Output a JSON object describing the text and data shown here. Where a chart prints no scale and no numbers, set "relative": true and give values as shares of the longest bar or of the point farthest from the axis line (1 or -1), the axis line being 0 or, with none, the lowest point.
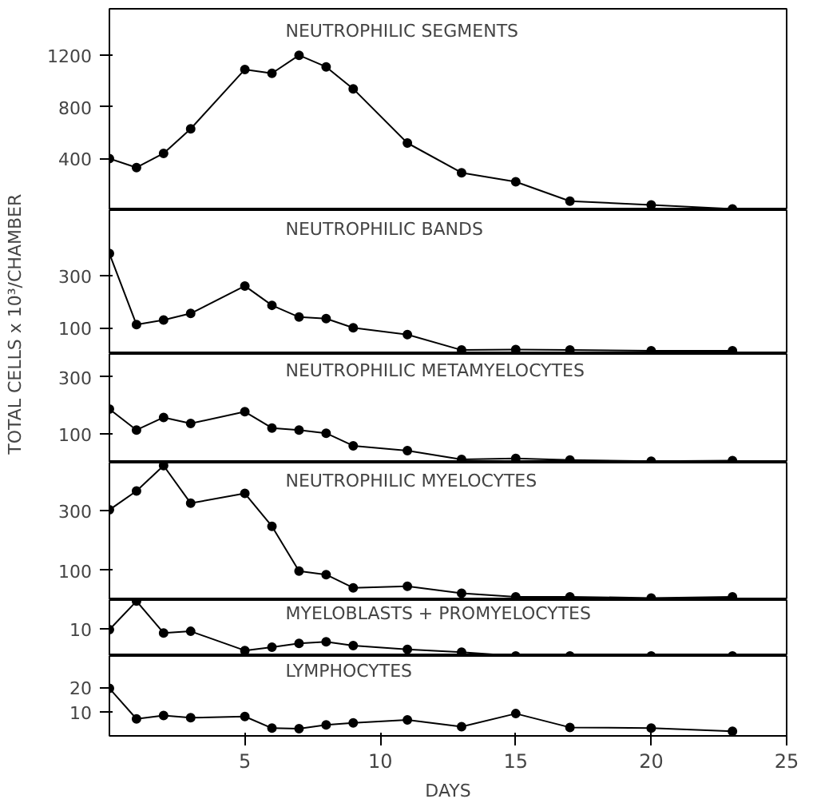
{
  "chart_data": [
    {
      "type": "line",
      "title": "NEUTROPHILIC SEGMENTS",
      "x": [
        0,
        1,
        2,
        3,
        5,
        6,
        7,
        8,
        9,
        11,
        13,
        15,
        17,
        20,
        23
      ],
      "xlim": [
        0,
        25
      ],
      "ylim": [
        0,
        1560
      ],
      "yticks": [
        400,
        800,
        1200
      ],
      "tick_labels": "y",
      "marker": "circle",
      "line_style": "solid",
      "series": [
        {
          "color": "#000000",
          "values": [
            400,
            330,
            440,
            630,
            1090,
            1060,
            1200,
            1110,
            940,
            520,
            290,
            220,
            70,
            40,
            10
          ]
        }
      ]
    },
    {
      "type": "line",
      "title": "NEUTROPHILIC BANDS",
      "x": [
        0,
        1,
        2,
        3,
        5,
        6,
        7,
        8,
        9,
        11,
        13,
        15,
        17,
        20,
        23
      ],
      "xlim": [
        0,
        25
      ],
      "ylim": [
        0,
        550
      ],
      "yticks": [
        100,
        300
      ],
      "tick_labels": "y",
      "marker": "circle",
      "line_style": "solid",
      "series": [
        {
          "color": "#000000",
          "values": [
            384,
            112,
            130,
            155,
            260,
            186,
            141,
            135,
            100,
            74,
            15,
            17,
            15,
            12,
            12
          ]
        }
      ]
    },
    {
      "type": "line",
      "title": "NEUTROPHILIC METAMYELOCYTES",
      "ylabel": "TOTAL CELLS x 10³/CHAMBER",
      "x": [
        0,
        1,
        2,
        3,
        5,
        6,
        7,
        8,
        9,
        11,
        13,
        15,
        17,
        20,
        23
      ],
      "xlim": [
        0,
        25
      ],
      "ylim": [
        0,
        380
      ],
      "yticks": [
        100,
        300
      ],
      "tick_labels": "y",
      "marker": "circle",
      "line_style": "solid",
      "series": [
        {
          "color": "#000000",
          "values": [
            187,
            114,
            158,
            137,
            178,
            121,
            114,
            103,
            59,
            42,
            11,
            15,
            9,
            5,
            7
          ]
        }
      ]
    },
    {
      "type": "line",
      "title": "NEUTROPHILIC MYELOCYTES",
      "x": [
        0,
        1,
        2,
        3,
        5,
        6,
        7,
        8,
        9,
        11,
        13,
        15,
        17,
        20,
        23
      ],
      "xlim": [
        0,
        25
      ],
      "ylim": [
        0,
        460
      ],
      "yticks": [
        100,
        300
      ],
      "tick_labels": "y",
      "marker": "circle",
      "line_style": "solid",
      "series": [
        {
          "color": "#000000",
          "values": [
            302,
            365,
            450,
            324,
            357,
            247,
            97,
            85,
            41,
            46,
            23,
            11,
            11,
            7,
            11
          ]
        }
      ]
    },
    {
      "type": "line",
      "title": "MYELOBLASTS + PROMYELOCYTES",
      "x": [
        0,
        1,
        2,
        3,
        5,
        6,
        7,
        8,
        9,
        11,
        13,
        15,
        17,
        20,
        23
      ],
      "xlim": [
        0,
        25
      ],
      "relative": true,
      "annotations": [
        "10"
      ],
      "tick_labels": "y",
      "marker": "circle",
      "line_style": "solid",
      "series": [
        {
          "color": "#000000",
          "values": [
            0.48,
            1,
            0.42,
            0.45,
            0.1,
            0.16,
            0.23,
            0.26,
            0.19,
            0.12,
            0.07,
            0,
            0,
            0,
            0
          ]
        }
      ]
    },
    {
      "type": "line",
      "title": "LYMPHOCYTES",
      "xlabel": "DAYS",
      "x": [
        0,
        1,
        2,
        3,
        5,
        6,
        7,
        8,
        9,
        11,
        13,
        15,
        17,
        20,
        23
      ],
      "xlim": [
        0,
        25
      ],
      "xticks": [
        5,
        10,
        15,
        20,
        25
      ],
      "ylim": [
        0,
        33
      ],
      "yticks": [
        10,
        20
      ],
      "marker": "circle",
      "line_style": "solid",
      "series": [
        {
          "color": "#000000",
          "values": [
            19.6,
            7,
            8.4,
            7.5,
            8,
            3.2,
            3,
            4.5,
            5.4,
            6.6,
            3.8,
            9.2,
            3.5,
            3.2,
            1.9
          ]
        }
      ]
    }
  ]
}
